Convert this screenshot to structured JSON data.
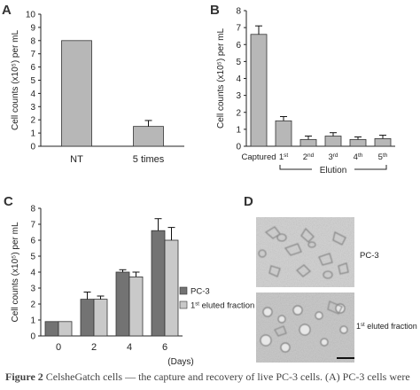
{
  "colors": {
    "bar_gray": "#b7b7b7",
    "bar_dark": "#737373",
    "bar_light": "#c9c9c9",
    "axis": "#222222"
  },
  "chart_data": [
    {
      "panel": "A",
      "type": "bar",
      "ylabel": "Cell counts (x10⁵) per mL",
      "categories": [
        "NT",
        "5 times"
      ],
      "values": [
        8.0,
        1.5
      ],
      "errors": [
        0,
        0.45
      ],
      "ylim": [
        0,
        10
      ],
      "yticks": [
        0,
        1,
        2,
        3,
        4,
        5,
        6,
        7,
        8,
        9,
        10
      ]
    },
    {
      "panel": "B",
      "type": "bar",
      "ylabel": "Cell counts (x10⁵) per mL",
      "categories": [
        {
          "base": "Captured",
          "sup": ""
        },
        {
          "base": "1",
          "sup": "st"
        },
        {
          "base": "2",
          "sup": "nd"
        },
        {
          "base": "3",
          "sup": "rd"
        },
        {
          "base": "4",
          "sup": "th"
        },
        {
          "base": "5",
          "sup": "th"
        }
      ],
      "values": [
        6.6,
        1.5,
        0.4,
        0.6,
        0.4,
        0.45
      ],
      "errors": [
        0.5,
        0.25,
        0.2,
        0.2,
        0.15,
        0.2
      ],
      "ylim": [
        0,
        8
      ],
      "yticks": [
        0,
        1,
        2,
        3,
        4,
        5,
        6,
        7,
        8
      ],
      "group_label": "Elution"
    },
    {
      "panel": "C",
      "type": "bar",
      "ylabel": "Cell counts (x10⁵) per mL",
      "xlabel": "(Days)",
      "categories": [
        "0",
        "2",
        "4",
        "6"
      ],
      "series": [
        {
          "name": "PC-3",
          "values": [
            0.9,
            2.3,
            4.0,
            6.6
          ],
          "errors": [
            0,
            0.45,
            0.15,
            0.75
          ]
        },
        {
          "name_base": "1",
          "name_sup": "st",
          "name_rest": " eluted fraction",
          "values": [
            0.9,
            2.3,
            3.7,
            6.0
          ],
          "errors": [
            0,
            0.2,
            0.3,
            0.8
          ]
        }
      ],
      "ylim": [
        0,
        8
      ],
      "yticks": [
        0,
        1,
        2,
        3,
        4,
        5,
        6,
        7,
        8
      ],
      "legend": "right"
    }
  ],
  "panel_d": {
    "letter": "D",
    "top_label": "PC-3",
    "bottom_label_base": "1",
    "bottom_label_sup": "st",
    "bottom_label_rest": " eluted fraction"
  },
  "letters": {
    "a": "A",
    "b": "B",
    "c": "C"
  },
  "caption": {
    "fig": "Figure 2",
    "text": "  CelsheGatch cells — the capture and recovery of live PC-3 cells. (A) PC-3 cells were"
  }
}
